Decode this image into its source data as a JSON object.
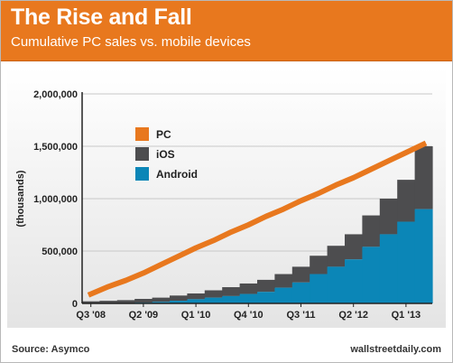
{
  "header": {
    "title": "The Rise and Fall",
    "subtitle": "Cumulative PC sales vs. mobile devices"
  },
  "footer": {
    "source": "Source: Asymco",
    "brand": "wallstreetdaily.com"
  },
  "colors": {
    "header_bg": "#e8781e",
    "pc": "#e8781e",
    "ios": "#4d4d4f",
    "android": "#0b86b7"
  },
  "chart_data": {
    "type": "area",
    "ylabel": "(thousands)",
    "xlabel": "",
    "ylim": [
      0,
      2000000
    ],
    "y_ticks": [
      "0",
      "500,000",
      "1,000,000",
      "1,500,000",
      "2,000,000"
    ],
    "y_tick_values": [
      0,
      500000,
      1000000,
      1500000,
      2000000
    ],
    "x_tick_labels": [
      "Q3 '08",
      "Q2 '09",
      "Q1 '10",
      "Q4 '10",
      "Q3 '11",
      "Q2 '12",
      "Q1 '13"
    ],
    "x_tick_positions": [
      0,
      3,
      6,
      9,
      12,
      15,
      18
    ],
    "legend": {
      "placement": "upper-left",
      "entries": [
        "PC",
        "iOS",
        "Android"
      ]
    },
    "grid": "horizontal",
    "quarters": [
      "Q3 '08",
      "Q4 '08",
      "Q1 '09",
      "Q2 '09",
      "Q3 '09",
      "Q4 '09",
      "Q1 '10",
      "Q2 '10",
      "Q3 '10",
      "Q4 '10",
      "Q1 '11",
      "Q2 '11",
      "Q3 '11",
      "Q4 '11",
      "Q1 '12",
      "Q2 '12",
      "Q3 '12",
      "Q4 '12",
      "Q1 '13",
      "Q2 '13"
    ],
    "series": [
      {
        "name": "PC",
        "style": "line",
        "values": [
          90000,
          160000,
          220000,
          290000,
          370000,
          450000,
          530000,
          600000,
          680000,
          750000,
          830000,
          900000,
          980000,
          1050000,
          1130000,
          1200000,
          1280000,
          1360000,
          1440000,
          1520000
        ]
      },
      {
        "name": "iOS",
        "style": "stacked-step",
        "values": [
          20000,
          24000,
          28000,
          35000,
          40000,
          50000,
          55000,
          70000,
          85000,
          100000,
          115000,
          130000,
          150000,
          175000,
          200000,
          240000,
          300000,
          340000,
          400000,
          600000
        ]
      },
      {
        "name": "Android",
        "style": "stacked-step",
        "values": [
          0,
          1000,
          3000,
          8000,
          15000,
          25000,
          40000,
          55000,
          70000,
          90000,
          110000,
          150000,
          200000,
          280000,
          350000,
          420000,
          540000,
          660000,
          780000,
          900000
        ]
      }
    ]
  }
}
